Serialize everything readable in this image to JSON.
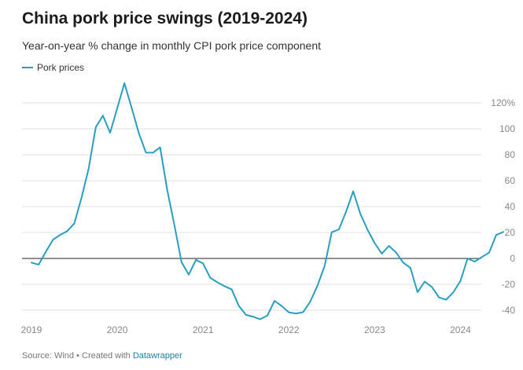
{
  "title": "China pork price swings (2019-2024)",
  "subtitle": "Year-on-year % change in monthly CPI pork price component",
  "footer": {
    "source": "Source: Wind",
    "separator": " • ",
    "created_with": "Created with ",
    "tool": "Datawrapper"
  },
  "colors": {
    "line": "#2a9ec0",
    "grid": "#e2e2e2",
    "zero": "#222222",
    "link": "#1d81a2"
  },
  "chart_data": {
    "type": "line",
    "title": "China pork price swings (2019-2024)",
    "subtitle": "Year-on-year % change in monthly CPI pork price component",
    "xlabel": "",
    "ylabel": "",
    "ylim": [
      -45,
      135
    ],
    "grid": true,
    "legend": "top-left",
    "x_ticks": [
      "2019",
      "2020",
      "2021",
      "2022",
      "2023",
      "2024"
    ],
    "y_ticks": [
      {
        "value": 120,
        "label": "120%"
      },
      {
        "value": 100,
        "label": "100"
      },
      {
        "value": 80,
        "label": "80"
      },
      {
        "value": 60,
        "label": "60"
      },
      {
        "value": 40,
        "label": "40"
      },
      {
        "value": 20,
        "label": "20"
      },
      {
        "value": 0,
        "label": "0"
      },
      {
        "value": -20,
        "label": "-20"
      },
      {
        "value": -40,
        "label": "-40"
      }
    ],
    "series": [
      {
        "name": "Pork prices",
        "x": [
          "2019-01",
          "2019-02",
          "2019-03",
          "2019-04",
          "2019-05",
          "2019-06",
          "2019-07",
          "2019-08",
          "2019-09",
          "2019-10",
          "2019-11",
          "2019-12",
          "2020-01",
          "2020-02",
          "2020-03",
          "2020-04",
          "2020-05",
          "2020-06",
          "2020-07",
          "2020-08",
          "2020-09",
          "2020-10",
          "2020-11",
          "2020-12",
          "2021-01",
          "2021-02",
          "2021-03",
          "2021-04",
          "2021-05",
          "2021-06",
          "2021-07",
          "2021-08",
          "2021-09",
          "2021-10",
          "2021-11",
          "2021-12",
          "2022-01",
          "2022-02",
          "2022-03",
          "2022-04",
          "2022-05",
          "2022-06",
          "2022-07",
          "2022-08",
          "2022-09",
          "2022-10",
          "2022-11",
          "2022-12",
          "2023-01",
          "2023-02",
          "2023-03",
          "2023-04",
          "2023-05",
          "2023-06",
          "2023-07",
          "2023-08",
          "2023-09",
          "2023-10",
          "2023-11",
          "2023-12",
          "2024-01",
          "2024-02",
          "2024-03",
          "2024-04",
          "2024-05",
          "2024-06",
          "2024-07"
        ],
        "values": [
          -3.2,
          -4.8,
          5.1,
          14.4,
          18.2,
          21.1,
          27.0,
          46.7,
          69.3,
          101.3,
          110.2,
          97.0,
          116.0,
          135.2,
          116.4,
          96.9,
          81.7,
          81.6,
          85.7,
          52.6,
          25.5,
          -3.0,
          -12.5,
          -1.1,
          -3.9,
          -14.9,
          -18.4,
          -21.4,
          -23.8,
          -36.5,
          -43.5,
          -44.9,
          -46.9,
          -44.0,
          -32.7,
          -36.7,
          -41.6,
          -42.5,
          -41.4,
          -33.3,
          -21.1,
          -6.0,
          20.2,
          22.4,
          36.0,
          51.8,
          34.4,
          22.2,
          11.8,
          3.7,
          9.7,
          4.6,
          -3.2,
          -7.2,
          -26.0,
          -17.9,
          -22.0,
          -30.1,
          -31.8,
          -26.1,
          -17.3,
          0.0,
          -2.4,
          1.1,
          4.4,
          18.1,
          20.4
        ]
      }
    ]
  }
}
